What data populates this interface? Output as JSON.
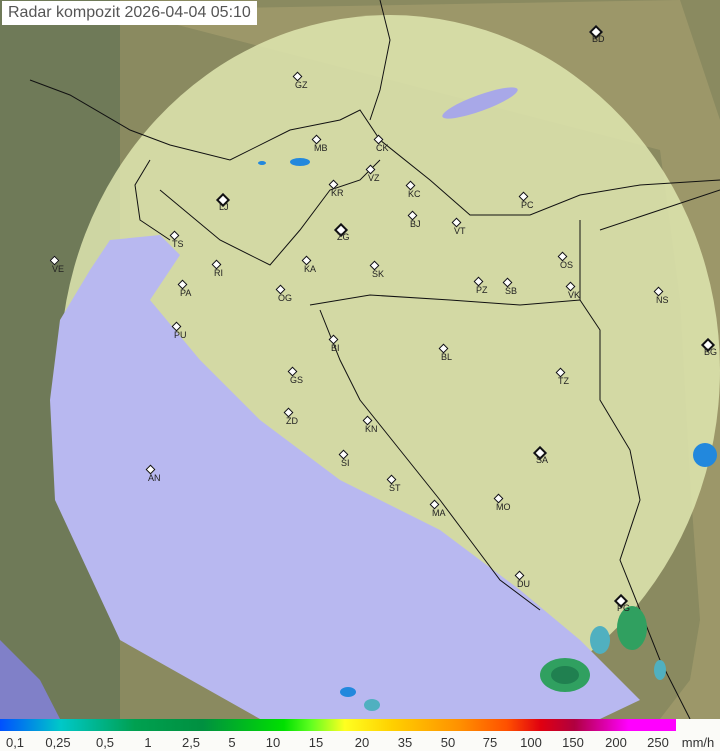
{
  "title": "Radar kompozit  2026-04-04   05:10",
  "legend": {
    "values": [
      "0,1",
      "0,25",
      "0,5",
      "1",
      "2,5",
      "5",
      "10",
      "15",
      "20",
      "35",
      "50",
      "75",
      "100",
      "150",
      "200",
      "250"
    ],
    "unit": "mm/h"
  },
  "colors": {
    "land": "#b9a776",
    "coverage": "#dfe6b0",
    "sea": "#b8b8f0",
    "outside": "#6f7a58"
  },
  "cities": [
    "GZ",
    "BD",
    "MB",
    "CK",
    "VZ",
    "KR",
    "KC",
    "PC",
    "LJ",
    "ZG",
    "BJ",
    "VT",
    "TS",
    "VE",
    "KA",
    "SK",
    "OS",
    "RI",
    "PA",
    "OG",
    "PZ",
    "SB",
    "VK",
    "NS",
    "PU",
    "BI",
    "BL",
    "BG",
    "TZ",
    "GS",
    "ZD",
    "KN",
    "SA",
    "SI",
    "AN",
    "ST",
    "MO",
    "MA",
    "DU",
    "PG"
  ]
}
